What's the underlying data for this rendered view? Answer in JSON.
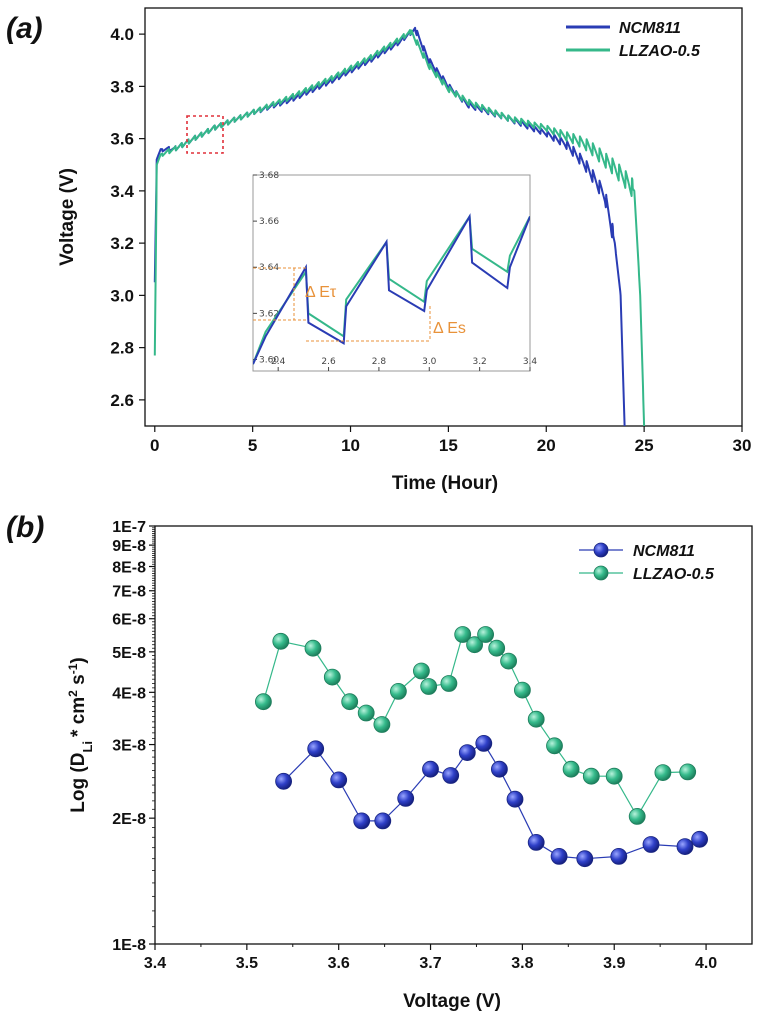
{
  "colors": {
    "ncm811": "#2a3cb4",
    "llzao": "#35b88a",
    "annot": "#e8923a",
    "highlight": "#e0303a"
  },
  "chart_data": [
    {
      "type": "line",
      "panel_label": "(a)",
      "xlabel": "Time (Hour)",
      "ylabel": "Voltage (V)",
      "xlim": [
        -0.5,
        30
      ],
      "ylim": [
        2.5,
        4.1
      ],
      "xticks": [
        0,
        5,
        10,
        15,
        20,
        25,
        30
      ],
      "yticks": [
        2.6,
        2.8,
        3.0,
        3.2,
        3.4,
        3.6,
        3.8,
        4.0
      ],
      "xtick_labels": [
        "0",
        "5",
        "10",
        "15",
        "20",
        "25",
        "30"
      ],
      "ytick_labels": [
        "2.6",
        "2.8",
        "3.0",
        "3.2",
        "3.4",
        "3.6",
        "3.8",
        "4.0"
      ],
      "legend_position": "top-right",
      "series": [
        {
          "name": "NCM811",
          "color": "#2a3cb4",
          "points": [
            [
              0,
              3.05
            ],
            [
              0.1,
              3.52
            ],
            [
              0.3,
              3.56
            ],
            [
              1,
              3.56
            ],
            [
              2,
              3.6
            ],
            [
              3,
              3.64
            ],
            [
              5,
              3.7
            ],
            [
              7,
              3.75
            ],
            [
              9,
              3.82
            ],
            [
              11,
              3.9
            ],
            [
              12.5,
              3.97
            ],
            [
              13.3,
              4.02
            ],
            [
              14,
              3.9
            ],
            [
              15,
              3.8
            ],
            [
              16,
              3.73
            ],
            [
              18,
              3.68
            ],
            [
              20,
              3.62
            ],
            [
              21,
              3.58
            ],
            [
              22,
              3.5
            ],
            [
              23,
              3.38
            ],
            [
              23.5,
              3.2
            ],
            [
              23.8,
              3.0
            ],
            [
              24,
              2.5
            ]
          ]
        },
        {
          "name": "LLZAO-0.5",
          "color": "#35b88a",
          "points": [
            [
              0,
              2.77
            ],
            [
              0.1,
              3.5
            ],
            [
              0.3,
              3.54
            ],
            [
              1,
              3.56
            ],
            [
              2,
              3.6
            ],
            [
              3,
              3.64
            ],
            [
              5,
              3.7
            ],
            [
              7,
              3.76
            ],
            [
              9,
              3.83
            ],
            [
              11,
              3.91
            ],
            [
              12.5,
              3.98
            ],
            [
              13.1,
              4.01
            ],
            [
              14,
              3.88
            ],
            [
              15,
              3.79
            ],
            [
              16,
              3.74
            ],
            [
              18,
              3.68
            ],
            [
              20,
              3.64
            ],
            [
              22,
              3.58
            ],
            [
              23,
              3.52
            ],
            [
              24,
              3.45
            ],
            [
              24.5,
              3.4
            ],
            [
              24.8,
              3.0
            ],
            [
              25,
              2.5
            ]
          ]
        }
      ],
      "annotations": {
        "delta_et": "Δ Eτ",
        "delta_es": "Δ Es"
      },
      "inset": {
        "xlim": [
          2.3,
          3.4
        ],
        "ylim": [
          3.595,
          3.68
        ],
        "xticks": [
          2.4,
          2.6,
          2.8,
          3.0,
          3.2,
          3.4
        ],
        "yticks": [
          3.6,
          3.62,
          3.64,
          3.66,
          3.68
        ],
        "xtick_labels": [
          "2.4",
          "2.6",
          "2.8",
          "3.0",
          "3.2",
          "3.4"
        ],
        "ytick_labels": [
          "3.60",
          "3.62",
          "3.64",
          "3.66",
          "3.68"
        ],
        "series": [
          {
            "name": "NCM811",
            "points": [
              [
                2.3,
                3.598
              ],
              [
                2.35,
                3.61
              ],
              [
                2.51,
                3.64
              ],
              [
                2.52,
                3.616
              ],
              [
                2.66,
                3.607
              ],
              [
                2.67,
                3.623
              ],
              [
                2.83,
                3.651
              ],
              [
                2.84,
                3.63
              ],
              [
                2.98,
                3.621
              ],
              [
                2.99,
                3.63
              ],
              [
                3.16,
                3.662
              ],
              [
                3.17,
                3.642
              ],
              [
                3.31,
                3.631
              ],
              [
                3.32,
                3.64
              ],
              [
                3.4,
                3.662
              ]
            ]
          },
          {
            "name": "LLZAO-0.5",
            "points": [
              [
                2.3,
                3.598
              ],
              [
                2.35,
                3.612
              ],
              [
                2.51,
                3.638
              ],
              [
                2.52,
                3.62
              ],
              [
                2.66,
                3.61
              ],
              [
                2.67,
                3.626
              ],
              [
                2.83,
                3.651
              ],
              [
                2.84,
                3.635
              ],
              [
                2.98,
                3.625
              ],
              [
                2.99,
                3.634
              ],
              [
                3.16,
                3.662
              ],
              [
                3.17,
                3.648
              ],
              [
                3.31,
                3.638
              ],
              [
                3.32,
                3.645
              ],
              [
                3.4,
                3.662
              ]
            ]
          }
        ]
      }
    },
    {
      "type": "scatter",
      "panel_label": "(b)",
      "xlabel": "Voltage (V)",
      "ylabel_parts": {
        "pre": "Log (D",
        "sub": "Li",
        "mid": "* cm",
        "sup1": "2",
        "mid2": " s",
        "sup2": "-1",
        "post": ")"
      },
      "xlim": [
        3.4,
        4.05
      ],
      "ylim": [
        1e-08,
        1e-07
      ],
      "yscale": "log",
      "xticks": [
        3.4,
        3.5,
        3.6,
        3.7,
        3.8,
        3.9,
        4.0
      ],
      "xtick_labels": [
        "3.4",
        "3.5",
        "3.6",
        "3.7",
        "3.8",
        "3.9",
        "4.0"
      ],
      "yticks": [
        1e-08,
        2e-08,
        3e-08,
        4e-08,
        5e-08,
        6e-08,
        7e-08,
        8e-08,
        9e-08,
        1e-07
      ],
      "ytick_labels": [
        "1E-8",
        "2E-8",
        "3E-8",
        "4E-8",
        "5E-8",
        "6E-8",
        "7E-8",
        "8E-8",
        "9E-8",
        "1E-7"
      ],
      "legend_position": "top-right",
      "series": [
        {
          "name": "NCM811",
          "color": "#2a3cb4",
          "x": [
            3.54,
            3.575,
            3.6,
            3.625,
            3.648,
            3.673,
            3.7,
            3.722,
            3.74,
            3.758,
            3.775,
            3.792,
            3.815,
            3.84,
            3.868,
            3.905,
            3.94,
            3.977,
            3.993
          ],
          "y": [
            2.45e-08,
            2.93e-08,
            2.47e-08,
            1.97e-08,
            1.97e-08,
            2.23e-08,
            2.62e-08,
            2.53e-08,
            2.87e-08,
            3.02e-08,
            2.62e-08,
            2.22e-08,
            1.75e-08,
            1.62e-08,
            1.6e-08,
            1.62e-08,
            1.73e-08,
            1.71e-08,
            1.78e-08
          ]
        },
        {
          "name": "LLZAO-0.5",
          "color": "#35b88a",
          "x": [
            3.518,
            3.537,
            3.572,
            3.593,
            3.612,
            3.63,
            3.647,
            3.665,
            3.69,
            3.698,
            3.72,
            3.735,
            3.748,
            3.76,
            3.772,
            3.785,
            3.8,
            3.815,
            3.835,
            3.853,
            3.875,
            3.9,
            3.925,
            3.953,
            3.98
          ],
          "y": [
            3.8e-08,
            5.3e-08,
            5.1e-08,
            4.35e-08,
            3.8e-08,
            3.57e-08,
            3.35e-08,
            4.02e-08,
            4.5e-08,
            4.13e-08,
            4.2e-08,
            5.5e-08,
            5.2e-08,
            5.5e-08,
            5.1e-08,
            4.75e-08,
            4.05e-08,
            3.45e-08,
            2.98e-08,
            2.62e-08,
            2.52e-08,
            2.52e-08,
            2.02e-08,
            2.57e-08,
            2.58e-08
          ]
        }
      ]
    }
  ]
}
